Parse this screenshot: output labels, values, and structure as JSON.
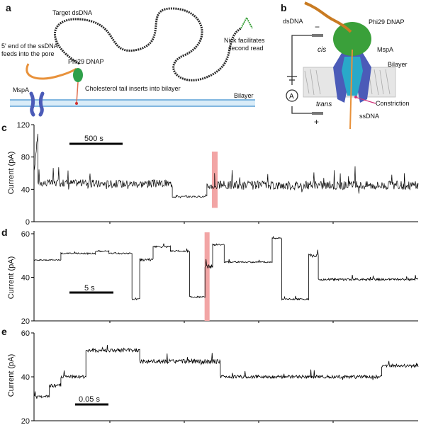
{
  "panel_letters": [
    "a",
    "b",
    "c",
    "d",
    "e"
  ],
  "panel_a": {
    "labels": {
      "target": "Target dsDNA",
      "feed": "5' end of the ssDNA feeds into the pore",
      "dnap": "Phi29 DNAP",
      "nick": "Nick facilitates second read",
      "mspa": "MspA",
      "chol": "Cholesterol tail inserts into bilayer",
      "bilayer": "Bilayer"
    }
  },
  "panel_b": {
    "labels": {
      "dsdna": "dsDNA",
      "dnap": "Phi29 DNAP",
      "mspa": "MspA",
      "cis": "cis",
      "bilayer": "Bilayer",
      "constriction": "Constriction",
      "trans": "trans",
      "ssdna": "ssDNA",
      "ammeter": "A",
      "minus": "−",
      "plus": "+"
    }
  },
  "colors": {
    "trace": "#000000",
    "highlight": "#f2a5a5",
    "dsdna": "#2a2a2a",
    "ssdna": "#e8913a",
    "protein_green": "#3aa03a",
    "mspa_blue": "#4b5bb8",
    "pore_cyan": "#29a9c9",
    "bilayer_line": "#5aa0d6",
    "constriction": "#d0307a"
  },
  "chart_data": [
    {
      "panel": "c",
      "type": "line",
      "ylabel": "Current (pA)",
      "ylim": [
        0,
        120
      ],
      "yticks": [
        0,
        40,
        80,
        120
      ],
      "scalebar": "500 s",
      "segments": [
        {
          "x": [
            0,
            0.01
          ],
          "y": [
            60,
            110
          ],
          "noise": 6
        },
        {
          "x": [
            0.01,
            0.14
          ],
          "y": [
            48,
            48
          ],
          "noise": 9
        },
        {
          "x": [
            0.14,
            0.36
          ],
          "y": [
            47,
            47
          ],
          "noise": 10
        },
        {
          "x": [
            0.36,
            0.45
          ],
          "y": [
            31,
            31
          ],
          "noise": 2
        },
        {
          "x": [
            0.45,
            0.47
          ],
          "y": [
            44,
            44
          ],
          "noise": 8
        },
        {
          "x": [
            0.47,
            1.0
          ],
          "y": [
            45,
            45
          ],
          "noise": 11
        }
      ],
      "highlight": [
        0.463,
        0.478
      ]
    },
    {
      "panel": "d",
      "type": "line",
      "ylabel": "Current (pA)",
      "ylim": [
        20,
        60
      ],
      "yticks": [
        20,
        40,
        60
      ],
      "scalebar": "5 s",
      "segments": [
        {
          "x": [
            0,
            0.07
          ],
          "y": [
            48,
            48
          ],
          "noise": 0.6
        },
        {
          "x": [
            0.07,
            0.16
          ],
          "y": [
            51,
            51
          ],
          "noise": 0.6
        },
        {
          "x": [
            0.16,
            0.195
          ],
          "y": [
            52,
            52
          ],
          "noise": 0.6
        },
        {
          "x": [
            0.195,
            0.255
          ],
          "y": [
            51,
            51
          ],
          "noise": 0.6
        },
        {
          "x": [
            0.255,
            0.275
          ],
          "y": [
            30,
            30
          ],
          "noise": 1.0
        },
        {
          "x": [
            0.275,
            0.31
          ],
          "y": [
            48,
            48
          ],
          "noise": 1.2
        },
        {
          "x": [
            0.31,
            0.355
          ],
          "y": [
            54,
            54
          ],
          "noise": 0.8
        },
        {
          "x": [
            0.355,
            0.405
          ],
          "y": [
            52,
            52
          ],
          "noise": 0.8
        },
        {
          "x": [
            0.405,
            0.445
          ],
          "y": [
            31,
            31
          ],
          "noise": 0.6
        },
        {
          "x": [
            0.445,
            0.465
          ],
          "y": [
            45,
            45
          ],
          "noise": 2.0
        },
        {
          "x": [
            0.465,
            0.495
          ],
          "y": [
            55,
            55
          ],
          "noise": 0.8
        },
        {
          "x": [
            0.495,
            0.62
          ],
          "y": [
            47,
            47
          ],
          "noise": 0.6
        },
        {
          "x": [
            0.62,
            0.645
          ],
          "y": [
            58,
            58
          ],
          "noise": 0.8
        },
        {
          "x": [
            0.645,
            0.715
          ],
          "y": [
            30,
            30
          ],
          "noise": 0.7
        },
        {
          "x": [
            0.715,
            0.74
          ],
          "y": [
            50,
            50
          ],
          "noise": 1.5
        },
        {
          "x": [
            0.74,
            1.0
          ],
          "y": [
            39,
            39
          ],
          "noise": 1.0
        }
      ],
      "highlight": [
        0.444,
        0.457
      ]
    },
    {
      "panel": "e",
      "type": "line",
      "ylabel": "Current (pA)",
      "ylim": [
        20,
        60
      ],
      "yticks": [
        20,
        40,
        60
      ],
      "scalebar": "0.05 s",
      "segments": [
        {
          "x": [
            0,
            0.04
          ],
          "y": [
            31,
            31
          ],
          "noise": 1.2
        },
        {
          "x": [
            0.04,
            0.07
          ],
          "y": [
            36,
            36
          ],
          "noise": 1.5
        },
        {
          "x": [
            0.07,
            0.135
          ],
          "y": [
            40,
            40
          ],
          "noise": 1.5
        },
        {
          "x": [
            0.135,
            0.275
          ],
          "y": [
            52,
            52
          ],
          "noise": 1.8
        },
        {
          "x": [
            0.275,
            0.485
          ],
          "y": [
            47,
            47
          ],
          "noise": 2.0
        },
        {
          "x": [
            0.485,
            0.905
          ],
          "y": [
            40,
            40
          ],
          "noise": 1.5
        },
        {
          "x": [
            0.905,
            1.0
          ],
          "y": [
            45,
            45
          ],
          "noise": 1.5
        }
      ],
      "highlight": null
    }
  ]
}
